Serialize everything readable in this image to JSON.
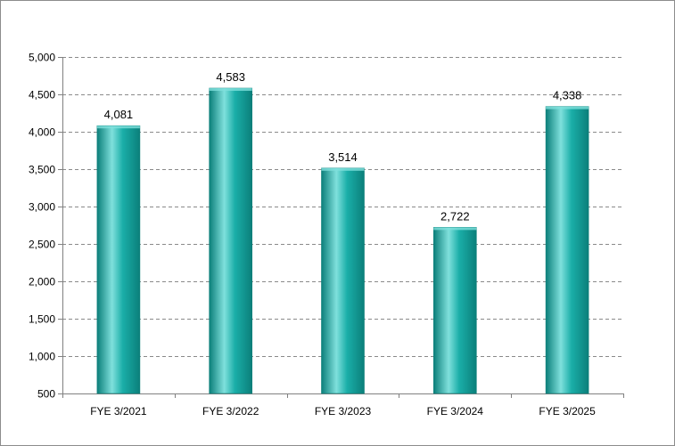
{
  "chart_data": {
    "type": "bar",
    "title": "",
    "xlabel": "",
    "ylabel": "",
    "categories": [
      "FYE 3/2021",
      "FYE 3/2022",
      "FYE 3/2023",
      "FYE 3/2024",
      "FYE 3/2025"
    ],
    "values": [
      4081,
      4583,
      3514,
      2722,
      4338
    ],
    "data_labels": [
      "4,081",
      "4,583",
      "3,514",
      "2,722",
      "4,338"
    ],
    "ylim": [
      500,
      5000
    ],
    "y_ticks": [
      500,
      1000,
      1500,
      2000,
      2500,
      3000,
      3500,
      4000,
      4500,
      5000
    ],
    "y_tick_labels": [
      "500",
      "1,000",
      "1,500",
      "2,000",
      "2,500",
      "3,000",
      "3,500",
      "4,000",
      "4,500",
      "5,000"
    ],
    "grid": true,
    "grid_style": "dashed",
    "legend": "none",
    "colors": {
      "bar_fill": "#1aaea8",
      "bar_highlight": "#7fe0dc",
      "bar_shadow": "#0b7f7a",
      "grid": "#8a8a8a",
      "axis": "#808080"
    }
  }
}
